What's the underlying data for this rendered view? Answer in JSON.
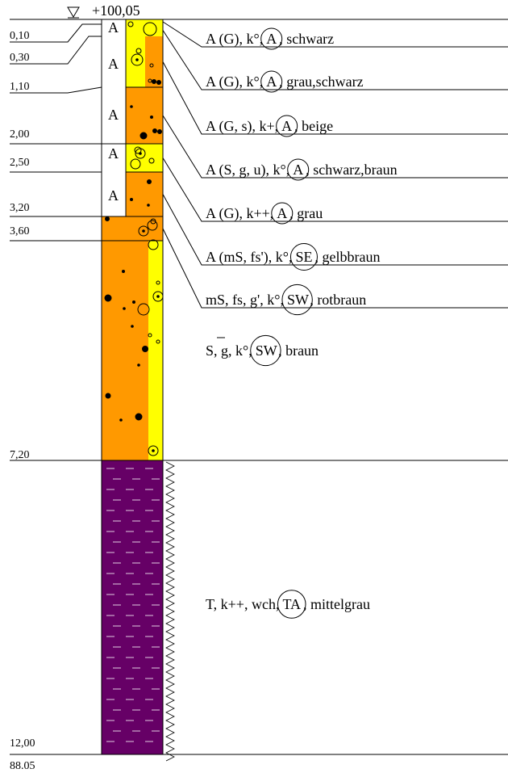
{
  "elevation": "+100,05",
  "footer_elevation": "88.05",
  "colors": {
    "fill_material": "#ffffff",
    "orange": "#ff9900",
    "yellow": "#ffff00",
    "clay": "#660066",
    "line": "#000000"
  },
  "depths": [
    {
      "label": "0,10",
      "value": 0.1
    },
    {
      "label": "0,30",
      "value": 0.3
    },
    {
      "label": "1,10",
      "value": 1.1
    },
    {
      "label": "2,00",
      "value": 2.0
    },
    {
      "label": "2,50",
      "value": 2.5
    },
    {
      "label": "3,20",
      "value": 3.2
    },
    {
      "label": "3,60",
      "value": 3.6
    },
    {
      "label": "7,20",
      "value": 7.2
    },
    {
      "label": "12,00",
      "value": 12.0
    }
  ],
  "layers": [
    {
      "pre": "A (G), k°,",
      "circ": "A",
      "post": ", schwarz"
    },
    {
      "pre": "A (G), k°,",
      "circ": "A",
      "post": ", grau,schwarz"
    },
    {
      "pre": "A (G, s), k+,",
      "circ": "A",
      "post": ", beige"
    },
    {
      "pre": "A (S, g, u), k°,",
      "circ": "A",
      "post": ", schwarz,braun"
    },
    {
      "pre": "A (G), k++,",
      "circ": "A",
      "post": ", grau"
    },
    {
      "pre": "A (mS, fs'), k°,",
      "circ": "SE",
      "post": ", gelbbraun"
    },
    {
      "pre": "mS, fs, g', k°,",
      "circ": "SW",
      "post": ", rotbraun"
    },
    {
      "pre": "S, g, k°,",
      "circ": "SW",
      "post": ", braun"
    },
    {
      "pre": "T, k++, wch,",
      "circ": "TA",
      "post": ", mittelgrau"
    }
  ],
  "fill_symbol": "A"
}
